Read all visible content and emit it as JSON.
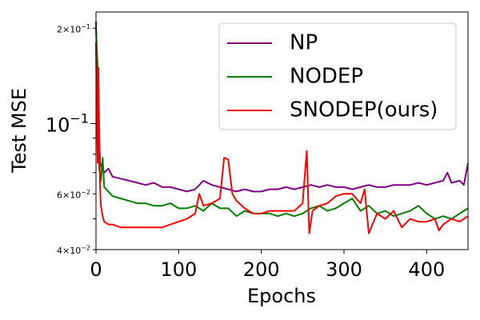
{
  "chart_data": {
    "type": "line",
    "title": "",
    "xlabel": "Epochs",
    "ylabel": "Test MSE",
    "yscale": "log",
    "xlim": [
      0,
      450
    ],
    "ylim": [
      0.04,
      0.225
    ],
    "x_ticks": [
      {
        "value": 0,
        "label": "0"
      },
      {
        "value": 100,
        "label": "100"
      },
      {
        "value": 200,
        "label": "200"
      },
      {
        "value": 300,
        "label": "300"
      },
      {
        "value": 400,
        "label": "400"
      }
    ],
    "y_major_ticks": [
      {
        "value": 0.1,
        "base": "10",
        "exp": "−1"
      }
    ],
    "y_minor_labeled_ticks": [
      {
        "value": 0.2,
        "mant": "2",
        "base": "10",
        "exp": "−1"
      },
      {
        "value": 0.06,
        "mant": "6",
        "base": "10",
        "exp": "−2"
      },
      {
        "value": 0.04,
        "mant": "4",
        "base": "10",
        "exp": "−2"
      }
    ],
    "y_minor_unlabeled_ticks": [
      0.05,
      0.07,
      0.08,
      0.09
    ],
    "grid": false,
    "legend": "top-right",
    "series": [
      {
        "name": "NP",
        "color": "#800080",
        "x": [
          0,
          2,
          5,
          10,
          15,
          20,
          30,
          40,
          50,
          60,
          70,
          80,
          90,
          100,
          110,
          120,
          130,
          140,
          150,
          160,
          170,
          180,
          190,
          200,
          210,
          220,
          230,
          240,
          250,
          260,
          270,
          280,
          290,
          300,
          310,
          320,
          330,
          340,
          350,
          360,
          370,
          380,
          390,
          400,
          410,
          420,
          425,
          430,
          440,
          445,
          450
        ],
        "y": [
          0.21,
          0.12,
          0.075,
          0.07,
          0.072,
          0.068,
          0.067,
          0.066,
          0.065,
          0.064,
          0.065,
          0.063,
          0.063,
          0.062,
          0.061,
          0.062,
          0.066,
          0.064,
          0.063,
          0.062,
          0.061,
          0.062,
          0.061,
          0.061,
          0.062,
          0.062,
          0.063,
          0.062,
          0.063,
          0.064,
          0.063,
          0.064,
          0.063,
          0.063,
          0.062,
          0.063,
          0.064,
          0.063,
          0.063,
          0.064,
          0.064,
          0.064,
          0.065,
          0.064,
          0.065,
          0.066,
          0.07,
          0.065,
          0.066,
          0.064,
          0.075
        ]
      },
      {
        "name": "NODEP",
        "color": "#008000",
        "x": [
          0,
          2,
          4,
          6,
          8,
          10,
          15,
          20,
          30,
          40,
          50,
          60,
          70,
          80,
          90,
          100,
          110,
          120,
          130,
          140,
          150,
          160,
          170,
          180,
          190,
          200,
          210,
          220,
          230,
          240,
          250,
          260,
          270,
          280,
          290,
          300,
          310,
          320,
          330,
          340,
          350,
          360,
          370,
          380,
          390,
          400,
          410,
          420,
          430,
          440,
          450
        ],
        "y": [
          0.2,
          0.15,
          0.072,
          0.066,
          0.078,
          0.063,
          0.061,
          0.059,
          0.058,
          0.057,
          0.056,
          0.056,
          0.055,
          0.055,
          0.056,
          0.054,
          0.054,
          0.055,
          0.053,
          0.056,
          0.054,
          0.054,
          0.051,
          0.053,
          0.052,
          0.052,
          0.052,
          0.051,
          0.052,
          0.051,
          0.052,
          0.054,
          0.055,
          0.053,
          0.054,
          0.056,
          0.058,
          0.053,
          0.055,
          0.052,
          0.053,
          0.051,
          0.052,
          0.053,
          0.055,
          0.052,
          0.05,
          0.051,
          0.05,
          0.052,
          0.054
        ]
      },
      {
        "name": "SNODEP(ours)",
        "color": "#ff0000",
        "x": [
          0,
          1,
          2,
          3,
          4,
          5,
          6,
          8,
          10,
          15,
          20,
          30,
          40,
          50,
          60,
          70,
          80,
          90,
          100,
          110,
          120,
          125,
          130,
          140,
          150,
          155,
          160,
          165,
          170,
          180,
          190,
          200,
          210,
          220,
          230,
          240,
          250,
          255,
          258,
          262,
          270,
          280,
          290,
          300,
          310,
          320,
          325,
          330,
          340,
          350,
          360,
          370,
          380,
          390,
          400,
          410,
          415,
          420,
          430,
          440,
          450
        ],
        "y": [
          0.18,
          0.11,
          0.075,
          0.15,
          0.09,
          0.062,
          0.055,
          0.051,
          0.049,
          0.048,
          0.048,
          0.047,
          0.047,
          0.047,
          0.047,
          0.047,
          0.047,
          0.048,
          0.049,
          0.05,
          0.052,
          0.06,
          0.055,
          0.056,
          0.058,
          0.078,
          0.077,
          0.06,
          0.057,
          0.054,
          0.052,
          0.052,
          0.053,
          0.053,
          0.053,
          0.053,
          0.056,
          0.082,
          0.045,
          0.053,
          0.055,
          0.056,
          0.059,
          0.06,
          0.06,
          0.056,
          0.062,
          0.045,
          0.052,
          0.05,
          0.053,
          0.047,
          0.05,
          0.049,
          0.049,
          0.05,
          0.046,
          0.048,
          0.05,
          0.049,
          0.051
        ]
      }
    ]
  }
}
